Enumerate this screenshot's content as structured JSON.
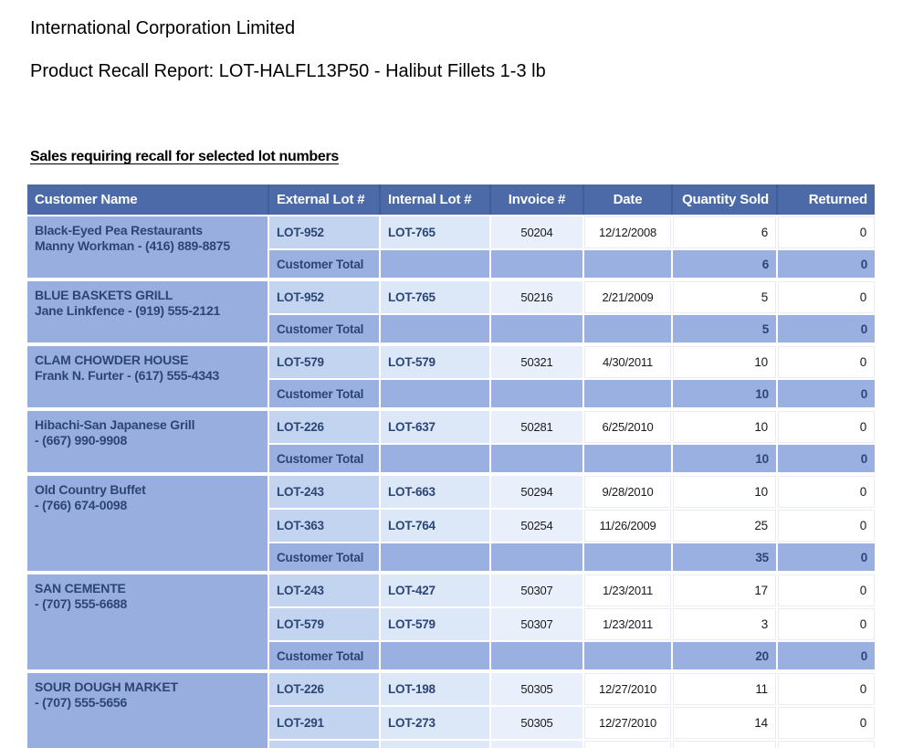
{
  "report": {
    "company": "International Corporation Limited",
    "title": "Product Recall Report: LOT-HALFL13P50 - Halibut Fillets 1-3 lb",
    "section_heading": "Sales requiring recall for selected lot numbers"
  },
  "colors": {
    "header_bg": "#4c6aa8",
    "header_sep": "#3f5d9b",
    "customer_bg": "#98aede",
    "total_bg": "#9ab0e0",
    "ext_bg": "#c3d4f0",
    "int_bg": "#dce7f8",
    "inv_bg": "#e9effb",
    "navy": "#2b4575"
  },
  "table": {
    "columns": [
      {
        "id": "customer",
        "label": "Customer Name",
        "align": "al"
      },
      {
        "id": "external",
        "label": "External Lot #",
        "align": "al"
      },
      {
        "id": "internal",
        "label": "Internal Lot #",
        "align": "al"
      },
      {
        "id": "invoice",
        "label": "Invoice #",
        "align": "ac"
      },
      {
        "id": "date",
        "label": "Date",
        "align": "ac"
      },
      {
        "id": "qty",
        "label": "Quantity Sold",
        "align": "ar"
      },
      {
        "id": "returned",
        "label": "Returned",
        "align": "ar"
      }
    ],
    "total_label": "Customer Total",
    "groups": [
      {
        "customer": "Black-Eyed Pea Restaurants",
        "contact": "Manny Workman - (416) 889-8875",
        "rows": [
          {
            "external": "LOT-952",
            "internal": "LOT-765",
            "invoice": "50204",
            "date": "12/12/2008",
            "qty": "6",
            "returned": "0"
          }
        ],
        "total": {
          "qty": "6",
          "returned": "0"
        }
      },
      {
        "customer": "BLUE BASKETS GRILL",
        "contact": "Jane Linkfence - (919) 555-2121",
        "rows": [
          {
            "external": "LOT-952",
            "internal": "LOT-765",
            "invoice": "50216",
            "date": "2/21/2009",
            "qty": "5",
            "returned": "0"
          }
        ],
        "total": {
          "qty": "5",
          "returned": "0"
        }
      },
      {
        "customer": "CLAM CHOWDER HOUSE",
        "contact": "Frank N. Furter - (617) 555-4343",
        "rows": [
          {
            "external": "LOT-579",
            "internal": "LOT-579",
            "invoice": "50321",
            "date": "4/30/2011",
            "qty": "10",
            "returned": "0"
          }
        ],
        "total": {
          "qty": "10",
          "returned": "0"
        }
      },
      {
        "customer": "Hibachi-San Japanese Grill",
        "contact": "- (667) 990-9908",
        "rows": [
          {
            "external": "LOT-226",
            "internal": "LOT-637",
            "invoice": "50281",
            "date": "6/25/2010",
            "qty": "10",
            "returned": "0"
          }
        ],
        "total": {
          "qty": "10",
          "returned": "0"
        }
      },
      {
        "customer": "Old Country Buffet",
        "contact": "- (766) 674-0098",
        "rows": [
          {
            "external": "LOT-243",
            "internal": "LOT-663",
            "invoice": "50294",
            "date": "9/28/2010",
            "qty": "10",
            "returned": "0"
          },
          {
            "external": "LOT-363",
            "internal": "LOT-764",
            "invoice": "50254",
            "date": "11/26/2009",
            "qty": "25",
            "returned": "0"
          }
        ],
        "total": {
          "qty": "35",
          "returned": "0"
        }
      },
      {
        "customer": "SAN CEMENTE",
        "contact": "- (707) 555-6688",
        "rows": [
          {
            "external": "LOT-243",
            "internal": "LOT-427",
            "invoice": "50307",
            "date": "1/23/2011",
            "qty": "17",
            "returned": "0"
          },
          {
            "external": "LOT-579",
            "internal": "LOT-579",
            "invoice": "50307",
            "date": "1/23/2011",
            "qty": "3",
            "returned": "0"
          }
        ],
        "total": {
          "qty": "20",
          "returned": "0"
        }
      },
      {
        "customer": "SOUR DOUGH MARKET",
        "contact": "- (707) 555-5656",
        "rows": [
          {
            "external": "LOT-226",
            "internal": "LOT-198",
            "invoice": "50305",
            "date": "12/27/2010",
            "qty": "11",
            "returned": "0"
          },
          {
            "external": "LOT-291",
            "internal": "LOT-273",
            "invoice": "50305",
            "date": "12/27/2010",
            "qty": "14",
            "returned": "0"
          }
        ],
        "total": null,
        "partial_next_row": true
      }
    ]
  }
}
